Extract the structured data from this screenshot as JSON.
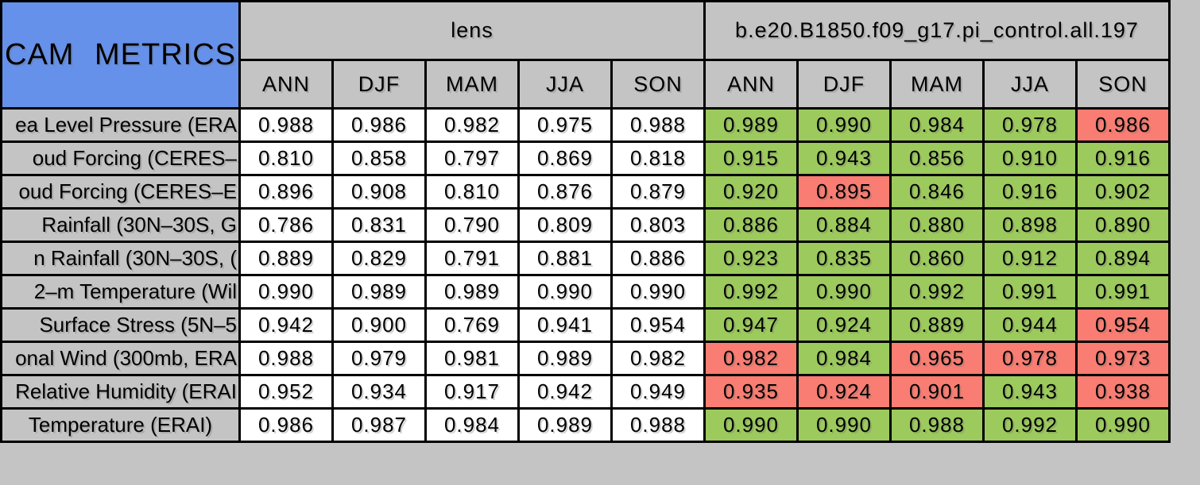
{
  "colors": {
    "page_bg": "#c4c4c4",
    "title_bg": "#6591ea",
    "header_bg": "#c4c4c4",
    "label_bg": "#c4c4c4",
    "value_bg": "#ffffff",
    "better_bg": "#9cca5c",
    "worse_bg": "#f97d72",
    "border": "#000000",
    "text": "#000000"
  },
  "chart_data": {
    "type": "table",
    "title": "CAM METRICS",
    "groups": [
      {
        "name": "lens"
      },
      {
        "name": "b.e20.B1850.f09_g17.pi_control.all.197"
      }
    ],
    "seasons": [
      "ANN",
      "DJF",
      "MAM",
      "JJA",
      "SON"
    ],
    "rows": [
      {
        "label": "ea Level Pressure (ERA",
        "truncated": true,
        "lens": [
          "0.988",
          "0.986",
          "0.982",
          "0.975",
          "0.988"
        ],
        "model": [
          {
            "value": "0.989",
            "status": "better"
          },
          {
            "value": "0.990",
            "status": "better"
          },
          {
            "value": "0.984",
            "status": "better"
          },
          {
            "value": "0.978",
            "status": "better"
          },
          {
            "value": "0.986",
            "status": "worse"
          }
        ]
      },
      {
        "label": "oud Forcing (CERES–",
        "truncated": true,
        "lens": [
          "0.810",
          "0.858",
          "0.797",
          "0.869",
          "0.818"
        ],
        "model": [
          {
            "value": "0.915",
            "status": "better"
          },
          {
            "value": "0.943",
            "status": "better"
          },
          {
            "value": "0.856",
            "status": "better"
          },
          {
            "value": "0.910",
            "status": "better"
          },
          {
            "value": "0.916",
            "status": "better"
          }
        ]
      },
      {
        "label": "oud Forcing (CERES–E",
        "truncated": true,
        "lens": [
          "0.896",
          "0.908",
          "0.810",
          "0.876",
          "0.879"
        ],
        "model": [
          {
            "value": "0.920",
            "status": "better"
          },
          {
            "value": "0.895",
            "status": "worse"
          },
          {
            "value": "0.846",
            "status": "better"
          },
          {
            "value": "0.916",
            "status": "better"
          },
          {
            "value": "0.902",
            "status": "better"
          }
        ]
      },
      {
        "label": "Rainfall (30N–30S, G",
        "truncated": true,
        "lens": [
          "0.786",
          "0.831",
          "0.790",
          "0.809",
          "0.803"
        ],
        "model": [
          {
            "value": "0.886",
            "status": "better"
          },
          {
            "value": "0.884",
            "status": "better"
          },
          {
            "value": "0.880",
            "status": "better"
          },
          {
            "value": "0.898",
            "status": "better"
          },
          {
            "value": "0.890",
            "status": "better"
          }
        ]
      },
      {
        "label": "n Rainfall (30N–30S, (",
        "truncated": true,
        "lens": [
          "0.889",
          "0.829",
          "0.791",
          "0.881",
          "0.886"
        ],
        "model": [
          {
            "value": "0.923",
            "status": "better"
          },
          {
            "value": "0.835",
            "status": "better"
          },
          {
            "value": "0.860",
            "status": "better"
          },
          {
            "value": "0.912",
            "status": "better"
          },
          {
            "value": "0.894",
            "status": "better"
          }
        ]
      },
      {
        "label": "2–m Temperature (Wil",
        "truncated": true,
        "lens": [
          "0.990",
          "0.989",
          "0.989",
          "0.990",
          "0.990"
        ],
        "model": [
          {
            "value": "0.992",
            "status": "better"
          },
          {
            "value": "0.990",
            "status": "better"
          },
          {
            "value": "0.992",
            "status": "better"
          },
          {
            "value": "0.991",
            "status": "better"
          },
          {
            "value": "0.991",
            "status": "better"
          }
        ]
      },
      {
        "label": "Surface Stress (5N–5",
        "truncated": true,
        "lens": [
          "0.942",
          "0.900",
          "0.769",
          "0.941",
          "0.954"
        ],
        "model": [
          {
            "value": "0.947",
            "status": "better"
          },
          {
            "value": "0.924",
            "status": "better"
          },
          {
            "value": "0.889",
            "status": "better"
          },
          {
            "value": "0.944",
            "status": "better"
          },
          {
            "value": "0.954",
            "status": "worse"
          }
        ]
      },
      {
        "label": "onal Wind (300mb, ERA",
        "truncated": true,
        "lens": [
          "0.988",
          "0.979",
          "0.981",
          "0.989",
          "0.982"
        ],
        "model": [
          {
            "value": "0.982",
            "status": "worse"
          },
          {
            "value": "0.984",
            "status": "better"
          },
          {
            "value": "0.965",
            "status": "worse"
          },
          {
            "value": "0.978",
            "status": "worse"
          },
          {
            "value": "0.973",
            "status": "worse"
          }
        ]
      },
      {
        "label": "Relative Humidity (ERAI",
        "truncated": true,
        "lens": [
          "0.952",
          "0.934",
          "0.917",
          "0.942",
          "0.949"
        ],
        "model": [
          {
            "value": "0.935",
            "status": "worse"
          },
          {
            "value": "0.924",
            "status": "worse"
          },
          {
            "value": "0.901",
            "status": "worse"
          },
          {
            "value": "0.943",
            "status": "better"
          },
          {
            "value": "0.938",
            "status": "worse"
          }
        ]
      },
      {
        "label": "Temperature (ERAI)",
        "truncated": false,
        "lens": [
          "0.986",
          "0.987",
          "0.984",
          "0.989",
          "0.988"
        ],
        "model": [
          {
            "value": "0.990",
            "status": "better"
          },
          {
            "value": "0.990",
            "status": "better"
          },
          {
            "value": "0.988",
            "status": "better"
          },
          {
            "value": "0.992",
            "status": "better"
          },
          {
            "value": "0.990",
            "status": "better"
          }
        ]
      }
    ]
  }
}
